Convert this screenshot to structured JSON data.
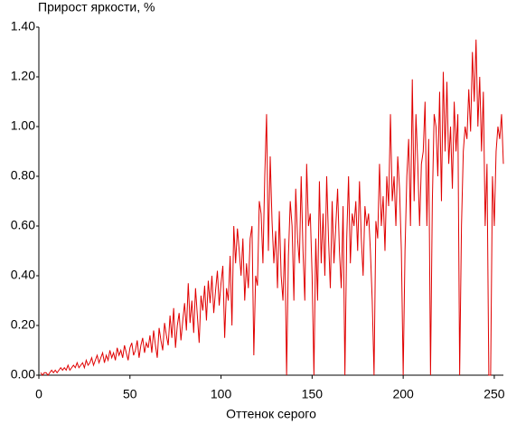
{
  "chart_data": {
    "type": "line",
    "title": "Прирост яркости, %",
    "x_label": "Оттенок серого",
    "xlim": [
      0,
      255
    ],
    "ylim": [
      0,
      1.4
    ],
    "xticks": [
      0,
      50,
      100,
      150,
      200,
      250
    ],
    "yticks": [
      {
        "value": 0,
        "label": "0.00"
      },
      {
        "value": 0.2,
        "label": "0.20"
      },
      {
        "value": 0.4,
        "label": "0.40"
      },
      {
        "value": 0.6,
        "label": "0.60"
      },
      {
        "value": 0.8,
        "label": "0.80"
      },
      {
        "value": 1.0,
        "label": "1.00"
      },
      {
        "value": 1.2,
        "label": "1.20"
      },
      {
        "value": 1.4,
        "label": "1.40"
      }
    ],
    "x": [
      1,
      2,
      3,
      4,
      5,
      6,
      7,
      8,
      9,
      10,
      11,
      12,
      13,
      14,
      15,
      16,
      17,
      18,
      19,
      20,
      21,
      22,
      23,
      24,
      25,
      26,
      27,
      28,
      29,
      30,
      31,
      32,
      33,
      34,
      35,
      36,
      37,
      38,
      39,
      40,
      41,
      42,
      43,
      44,
      45,
      46,
      47,
      48,
      49,
      50,
      51,
      52,
      53,
      54,
      55,
      56,
      57,
      58,
      59,
      60,
      61,
      62,
      63,
      64,
      65,
      66,
      67,
      68,
      69,
      70,
      71,
      72,
      73,
      74,
      75,
      76,
      77,
      78,
      79,
      80,
      81,
      82,
      83,
      84,
      85,
      86,
      87,
      88,
      89,
      90,
      91,
      92,
      93,
      94,
      95,
      96,
      97,
      98,
      99,
      100,
      101,
      102,
      103,
      104,
      105,
      106,
      107,
      108,
      109,
      110,
      111,
      112,
      113,
      114,
      115,
      116,
      117,
      118,
      119,
      120,
      121,
      122,
      123,
      124,
      125,
      126,
      127,
      128,
      129,
      130,
      131,
      132,
      133,
      134,
      135,
      136,
      137,
      138,
      139,
      140,
      141,
      142,
      143,
      144,
      145,
      146,
      147,
      148,
      149,
      150,
      151,
      152,
      153,
      154,
      155,
      156,
      157,
      158,
      159,
      160,
      161,
      162,
      163,
      164,
      165,
      166,
      167,
      168,
      169,
      170,
      171,
      172,
      173,
      174,
      175,
      176,
      177,
      178,
      179,
      180,
      181,
      182,
      183,
      184,
      185,
      186,
      187,
      188,
      189,
      190,
      191,
      192,
      193,
      194,
      195,
      196,
      197,
      198,
      199,
      200,
      201,
      202,
      203,
      204,
      205,
      206,
      207,
      208,
      209,
      210,
      211,
      212,
      213,
      214,
      215,
      216,
      217,
      218,
      219,
      220,
      221,
      222,
      223,
      224,
      225,
      226,
      227,
      228,
      229,
      230,
      231,
      232,
      233,
      234,
      235,
      236,
      237,
      238,
      239,
      240,
      241,
      242,
      243,
      244,
      245,
      246,
      247,
      248,
      249,
      250,
      251,
      252,
      253,
      254,
      255
    ],
    "series": [
      {
        "color": "#e00000",
        "values": [
          0.01,
          0.0,
          0.01,
          0.01,
          0.0,
          0.01,
          0.02,
          0.01,
          0.02,
          0.01,
          0.02,
          0.03,
          0.02,
          0.03,
          0.02,
          0.04,
          0.02,
          0.03,
          0.04,
          0.03,
          0.05,
          0.03,
          0.04,
          0.05,
          0.03,
          0.06,
          0.04,
          0.05,
          0.07,
          0.04,
          0.06,
          0.08,
          0.05,
          0.07,
          0.09,
          0.05,
          0.08,
          0.06,
          0.1,
          0.07,
          0.09,
          0.06,
          0.11,
          0.08,
          0.1,
          0.07,
          0.12,
          0.09,
          0.06,
          0.11,
          0.13,
          0.08,
          0.1,
          0.14,
          0.07,
          0.12,
          0.15,
          0.09,
          0.13,
          0.11,
          0.16,
          0.09,
          0.18,
          0.12,
          0.07,
          0.19,
          0.14,
          0.1,
          0.21,
          0.16,
          0.12,
          0.24,
          0.15,
          0.27,
          0.11,
          0.2,
          0.25,
          0.14,
          0.22,
          0.29,
          0.18,
          0.37,
          0.21,
          0.3,
          0.17,
          0.35,
          0.24,
          0.13,
          0.32,
          0.26,
          0.36,
          0.22,
          0.38,
          0.29,
          0.4,
          0.25,
          0.34,
          0.42,
          0.28,
          0.37,
          0.44,
          0.15,
          0.35,
          0.3,
          0.48,
          0.2,
          0.6,
          0.45,
          0.59,
          0.5,
          0.4,
          0.55,
          0.3,
          0.45,
          0.35,
          0.55,
          0.6,
          0.08,
          0.4,
          0.36,
          0.7,
          0.65,
          0.45,
          0.8,
          1.05,
          0.5,
          0.88,
          0.62,
          0.45,
          0.58,
          0.35,
          0.66,
          0.4,
          0.3,
          0.55,
          0.0,
          0.48,
          0.7,
          0.6,
          0.3,
          0.75,
          0.55,
          0.45,
          0.8,
          0.5,
          0.3,
          0.85,
          0.6,
          0.65,
          0.4,
          0.0,
          0.55,
          0.3,
          0.78,
          0.45,
          0.65,
          0.4,
          0.8,
          0.55,
          0.35,
          0.7,
          0.45,
          0.6,
          0.75,
          0.5,
          0.35,
          0.68,
          0.0,
          0.55,
          0.8,
          0.45,
          0.65,
          0.6,
          0.7,
          0.5,
          0.78,
          0.55,
          0.4,
          0.68,
          0.6,
          0.65,
          0.5,
          0.3,
          0.0,
          0.62,
          0.55,
          0.85,
          0.6,
          0.72,
          0.5,
          0.8,
          0.68,
          1.05,
          0.7,
          0.8,
          0.6,
          0.88,
          0.75,
          0.5,
          0.0,
          0.5,
          0.8,
          0.95,
          0.6,
          1.19,
          0.7,
          1.05,
          0.85,
          0.6,
          0.85,
          0.9,
          1.1,
          0.6,
          0.95,
          0.0,
          0.7,
          1.05,
          1.0,
          0.8,
          1.14,
          0.7,
          1.22,
          0.9,
          1.18,
          0.85,
          1.0,
          0.75,
          1.1,
          0.9,
          1.05,
          0.0,
          0.6,
          0.9,
          1.0,
          0.95,
          1.15,
          0.98,
          1.3,
          1.1,
          1.35,
          1.0,
          1.2,
          0.9,
          1.14,
          0.6,
          0.85,
          0.0,
          0.0,
          0.8,
          0.6,
          0.9,
          1.0,
          0.95,
          1.05,
          0.85
        ]
      }
    ]
  }
}
